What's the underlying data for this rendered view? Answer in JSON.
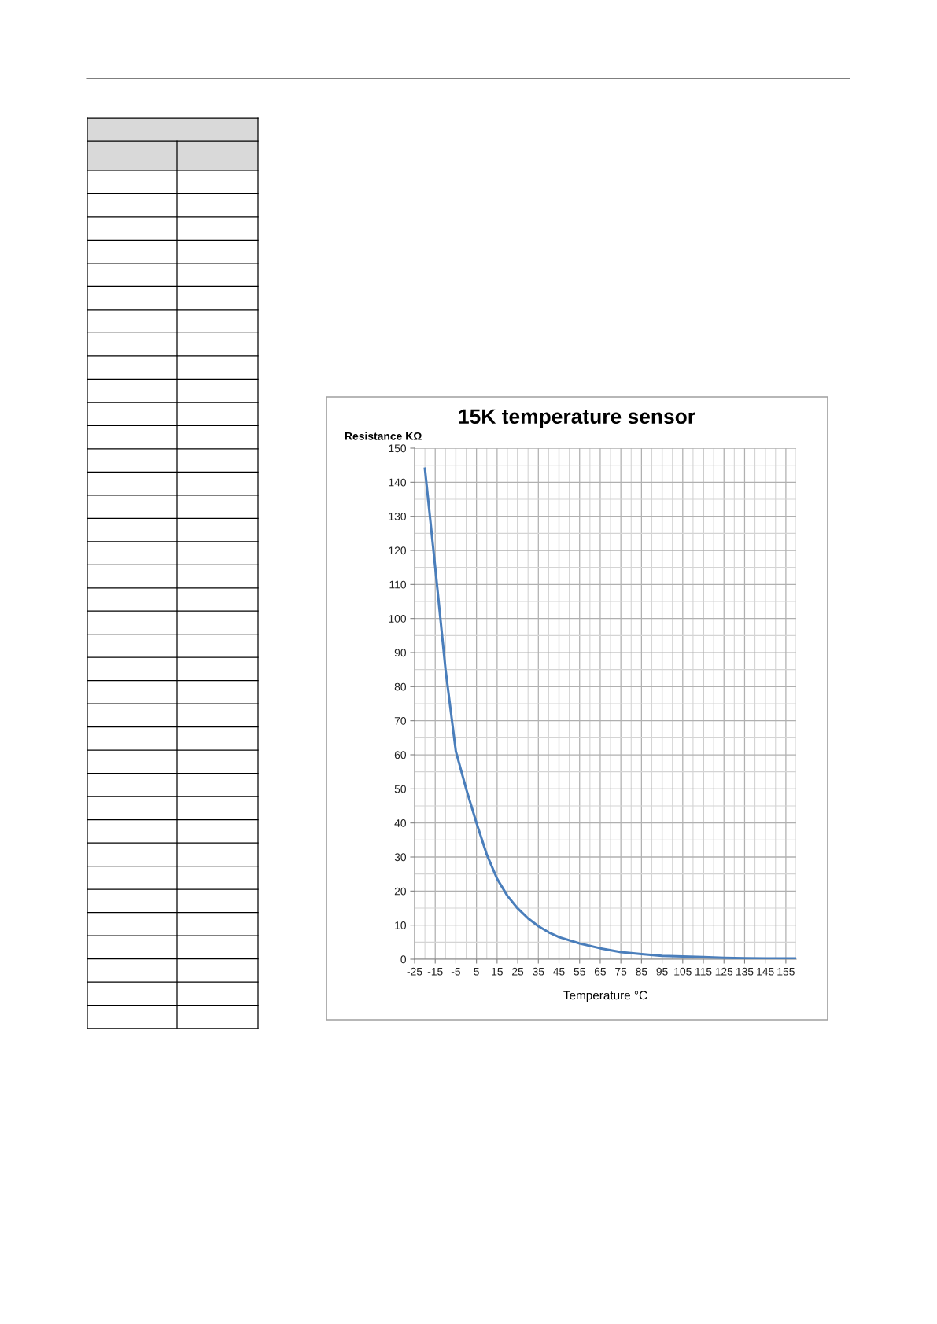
{
  "chart_data": {
    "type": "line",
    "title": "15K temperature sensor",
    "xlabel": "Temperature °C",
    "ylabel": "Resistance KΩ",
    "x": [
      -20,
      -15,
      -10,
      -5,
      0,
      5,
      10,
      15,
      20,
      25,
      30,
      35,
      40,
      45,
      55,
      65,
      75,
      85,
      95,
      105,
      115,
      125,
      135,
      145,
      155,
      160
    ],
    "series": [
      {
        "color": "#4a7ebb",
        "values": [
          144,
          115,
          85,
          61,
          50,
          40,
          30.7,
          23.6,
          18.6,
          14.9,
          12,
          9.7,
          7.9,
          6.5,
          4.6,
          3.2,
          2.1,
          1.5,
          1.0,
          0.8,
          0.6,
          0.4,
          0.3,
          0.25,
          0.2,
          0.2
        ]
      }
    ],
    "xlim": [
      -25,
      160
    ],
    "xticks": [
      -25,
      -15,
      -5,
      5,
      15,
      25,
      35,
      45,
      55,
      65,
      75,
      85,
      95,
      105,
      115,
      125,
      135,
      145,
      155
    ],
    "ylim": [
      0,
      150
    ],
    "yticks": [
      0,
      10,
      20,
      30,
      40,
      50,
      60,
      70,
      80,
      90,
      100,
      110,
      120,
      130,
      140,
      150
    ],
    "grid": true,
    "marker": "none",
    "line_style": "solid",
    "legend": false
  }
}
